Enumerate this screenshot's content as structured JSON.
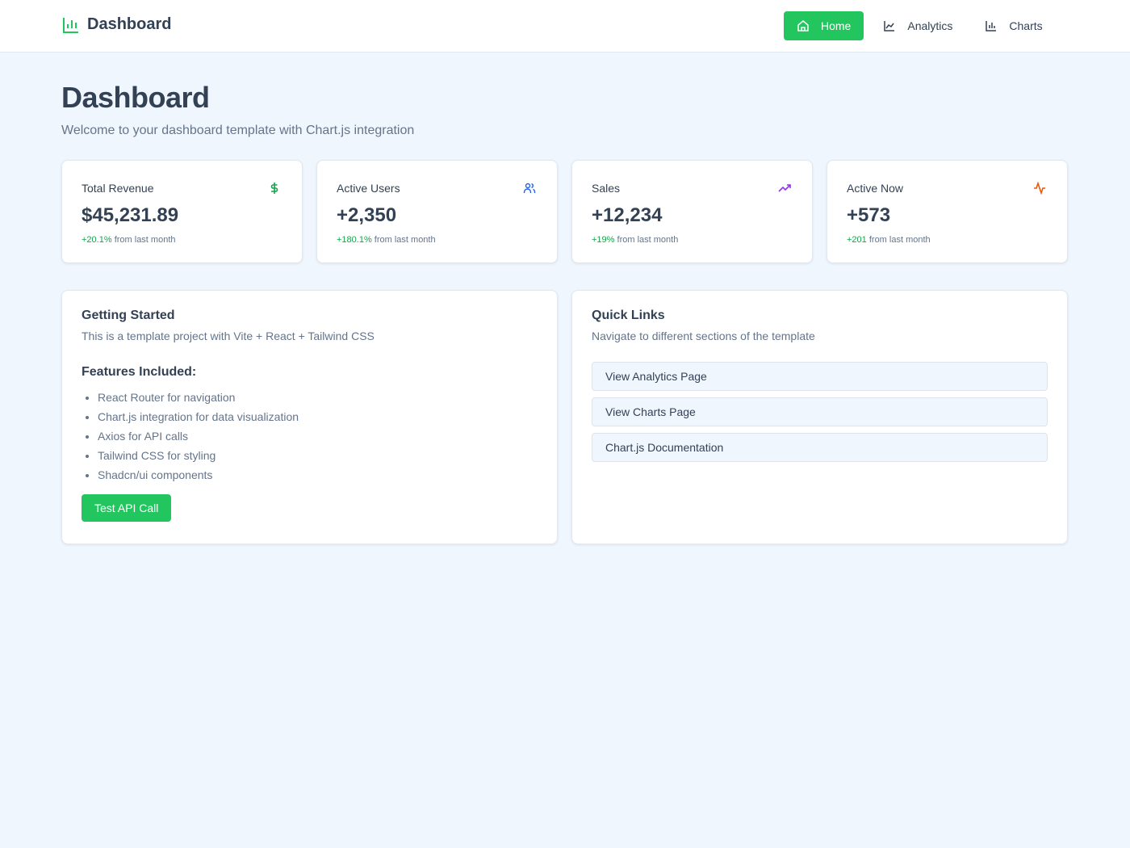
{
  "header": {
    "brand": "Dashboard",
    "nav": [
      {
        "label": "Home",
        "active": true
      },
      {
        "label": "Analytics",
        "active": false
      },
      {
        "label": "Charts",
        "active": false
      }
    ]
  },
  "page": {
    "title": "Dashboard",
    "subtitle": "Welcome to your dashboard template with Chart.js integration"
  },
  "stats": [
    {
      "label": "Total Revenue",
      "value": "$45,231.89",
      "change": "+20.1%",
      "suffix": "from last month"
    },
    {
      "label": "Active Users",
      "value": "+2,350",
      "change": "+180.1%",
      "suffix": "from last month"
    },
    {
      "label": "Sales",
      "value": "+12,234",
      "change": "+19%",
      "suffix": "from last month"
    },
    {
      "label": "Active Now",
      "value": "+573",
      "change": "+201",
      "suffix": "from last month"
    }
  ],
  "getting_started": {
    "title": "Getting Started",
    "description": "This is a template project with Vite + React + Tailwind CSS",
    "features_title": "Features Included:",
    "features": [
      "React Router for navigation",
      "Chart.js integration for data visualization",
      "Axios for API calls",
      "Tailwind CSS for styling",
      "Shadcn/ui components"
    ],
    "button": "Test API Call"
  },
  "quick_links": {
    "title": "Quick Links",
    "description": "Navigate to different sections of the template",
    "links": [
      "View Analytics Page",
      "View Charts Page",
      "Chart.js Documentation"
    ]
  }
}
